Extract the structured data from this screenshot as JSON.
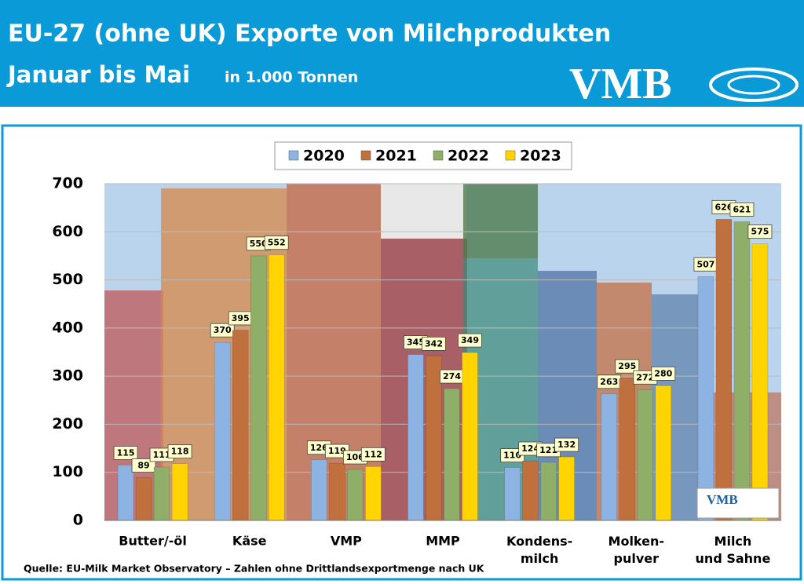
{
  "chart_data": {
    "type": "bar",
    "title": "EU-27 (ohne UK) Exporte von Milchprodukten",
    "subtitle": "Januar bis Mai",
    "unit": "in 1.000 Tonnen",
    "logo": "VMB",
    "source": "Quelle: EU-Milk Market Observatory – Zahlen ohne Drittlandsexportmenge nach UK",
    "categories": [
      "Butter/-öl",
      "Käse",
      "VMP",
      "MMP",
      "Kondens-\nmilch",
      "Molken-\npulver",
      "Milch\nund Sahne"
    ],
    "series": [
      {
        "name": "2020",
        "color": "#8db3e2",
        "values": [
          115,
          370,
          126,
          345,
          110,
          263,
          507
        ]
      },
      {
        "name": "2021",
        "color": "#c0703c",
        "values": [
          89,
          395,
          119,
          342,
          124,
          295,
          626
        ]
      },
      {
        "name": "2022",
        "color": "#8fae68",
        "values": [
          111,
          550,
          106,
          274,
          121,
          272,
          621
        ]
      },
      {
        "name": "2023",
        "color": "#ffd400",
        "values": [
          118,
          552,
          112,
          349,
          132,
          280,
          575
        ]
      }
    ],
    "ylim": [
      0,
      700
    ],
    "yticks": [
      0,
      100,
      200,
      300,
      400,
      500,
      600,
      700
    ],
    "grid": true
  }
}
